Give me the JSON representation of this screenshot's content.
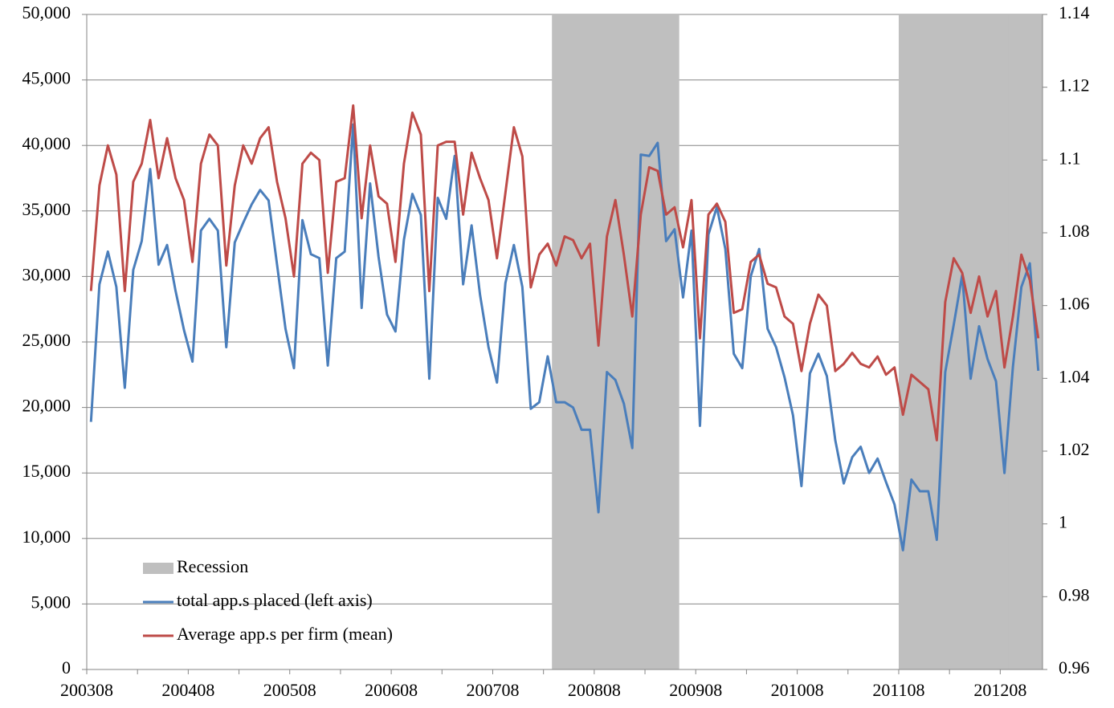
{
  "chart_data": {
    "type": "line",
    "categories": [
      "200308",
      null,
      null,
      null,
      null,
      null,
      null,
      null,
      null,
      null,
      null,
      null,
      "200408",
      null,
      null,
      null,
      null,
      null,
      null,
      null,
      null,
      null,
      null,
      null,
      "200508",
      null,
      null,
      null,
      null,
      null,
      null,
      null,
      null,
      null,
      null,
      null,
      "200608",
      null,
      null,
      null,
      null,
      null,
      null,
      null,
      null,
      null,
      null,
      null,
      "200708",
      null,
      null,
      null,
      null,
      null,
      null,
      null,
      null,
      null,
      null,
      null,
      "200808",
      null,
      null,
      null,
      null,
      null,
      null,
      null,
      null,
      null,
      null,
      null,
      "200908",
      null,
      null,
      null,
      null,
      null,
      null,
      null,
      null,
      null,
      null,
      null,
      "201008",
      null,
      null,
      null,
      null,
      null,
      null,
      null,
      null,
      null,
      null,
      null,
      "201108",
      null,
      null,
      null,
      null,
      null,
      null,
      null,
      null,
      null,
      null,
      null,
      "201208",
      null,
      null,
      null,
      null
    ],
    "series": [
      {
        "name": "Recession",
        "type": "bar",
        "color": "#bfbfbf",
        "values": [
          null,
          null,
          null,
          null,
          null,
          null,
          null,
          null,
          null,
          null,
          null,
          null,
          null,
          null,
          null,
          null,
          null,
          null,
          null,
          null,
          null,
          null,
          null,
          null,
          null,
          null,
          null,
          null,
          null,
          null,
          null,
          null,
          null,
          null,
          null,
          null,
          null,
          null,
          null,
          null,
          null,
          null,
          null,
          null,
          null,
          null,
          null,
          null,
          null,
          null,
          null,
          null,
          null,
          null,
          null,
          50000,
          50000,
          50000,
          50000,
          50000,
          50000,
          50000,
          50000,
          50000,
          50000,
          50000,
          50000,
          50000,
          50000,
          50000,
          null,
          null,
          null,
          null,
          null,
          null,
          null,
          null,
          null,
          null,
          null,
          null,
          null,
          null,
          null,
          null,
          null,
          null,
          null,
          null,
          null,
          null,
          null,
          null,
          null,
          null,
          50000,
          50000,
          50000,
          50000,
          50000,
          50000,
          50000,
          50000,
          50000,
          50000,
          50000,
          50000,
          50000,
          50000,
          50000,
          50000,
          50000
        ]
      },
      {
        "name": "total app.s placed (left axis)",
        "color": "#4a7ebb",
        "values": [
          18900,
          29400,
          31900,
          29200,
          21500,
          30500,
          32700,
          38200,
          30900,
          32400,
          28900,
          25900,
          23500,
          33500,
          34400,
          33500,
          24600,
          32600,
          34100,
          35500,
          36600,
          35800,
          30900,
          26000,
          23000,
          34300,
          31700,
          31400,
          23200,
          31400,
          31900,
          41600,
          27600,
          37100,
          31500,
          27100,
          25800,
          32800,
          36300,
          34700,
          22200,
          36000,
          34400,
          39200,
          29400,
          33900,
          28600,
          24600,
          21900,
          29500,
          32400,
          29200,
          19900,
          20400,
          23900,
          20400,
          20400,
          20000,
          18300,
          18300,
          12000,
          22700,
          22100,
          20300,
          16900,
          39300,
          39200,
          40200,
          32700,
          33600,
          28400,
          33500,
          18600,
          33200,
          35300,
          32100,
          24100,
          23000,
          30000,
          32100,
          26000,
          24600,
          22300,
          19400,
          14000,
          22600,
          24100,
          22400,
          17500,
          14200,
          16200,
          17000,
          15000,
          16100,
          14300,
          12600,
          9100,
          14500,
          13600,
          13600,
          9900,
          22700,
          26300,
          30100,
          22200,
          26200,
          23700,
          22000,
          15000,
          23100,
          29200,
          31000,
          22800
        ]
      },
      {
        "name": "Average app.s per firm (mean)",
        "color": "#be4b48",
        "axis": "y2",
        "values": [
          1.064,
          1.093,
          1.104,
          1.096,
          1.064,
          1.094,
          1.099,
          1.111,
          1.095,
          1.106,
          1.095,
          1.089,
          1.072,
          1.099,
          1.107,
          1.104,
          1.071,
          1.093,
          1.104,
          1.099,
          1.106,
          1.109,
          1.094,
          1.084,
          1.068,
          1.099,
          1.102,
          1.1,
          1.069,
          1.094,
          1.095,
          1.115,
          1.084,
          1.104,
          1.09,
          1.088,
          1.072,
          1.099,
          1.113,
          1.107,
          1.064,
          1.104,
          1.105,
          1.105,
          1.085,
          1.102,
          1.095,
          1.089,
          1.073,
          1.091,
          1.109,
          1.101,
          1.065,
          1.074,
          1.077,
          1.071,
          1.079,
          1.078,
          1.073,
          1.077,
          1.049,
          1.079,
          1.089,
          1.074,
          1.057,
          1.085,
          1.098,
          1.097,
          1.085,
          1.087,
          1.076,
          1.089,
          1.051,
          1.085,
          1.088,
          1.083,
          1.058,
          1.059,
          1.072,
          1.074,
          1.066,
          1.065,
          1.057,
          1.055,
          1.042,
          1.055,
          1.063,
          1.06,
          1.042,
          1.044,
          1.047,
          1.044,
          1.043,
          1.046,
          1.041,
          1.043,
          1.03,
          1.041,
          1.039,
          1.037,
          1.023,
          1.061,
          1.073,
          1.069,
          1.058,
          1.068,
          1.057,
          1.064,
          1.043,
          1.057,
          1.074,
          1.067,
          1.051
        ]
      }
    ],
    "ylim": [
      0,
      50000
    ],
    "yticks": [
      0,
      {
        "value": 5000,
        "label": "5,000"
      },
      {
        "value": 10000,
        "label": "10,000"
      },
      {
        "value": 15000,
        "label": "15,000"
      },
      {
        "value": 20000,
        "label": "20,000"
      },
      {
        "value": 25000,
        "label": "25,000"
      },
      {
        "value": 30000,
        "label": "30,000"
      },
      {
        "value": 35000,
        "label": "35,000"
      },
      {
        "value": 40000,
        "label": "40,000"
      },
      {
        "value": 45000,
        "label": "45,000"
      },
      {
        "value": 50000,
        "label": "50,000"
      }
    ],
    "y2lim": [
      0.96,
      1.14
    ],
    "y2ticks": [
      0.96,
      0.98,
      1,
      1.02,
      1.04,
      1.06,
      1.08,
      1.1,
      1.12,
      1.14
    ],
    "grid": true,
    "legend": "lower left"
  }
}
